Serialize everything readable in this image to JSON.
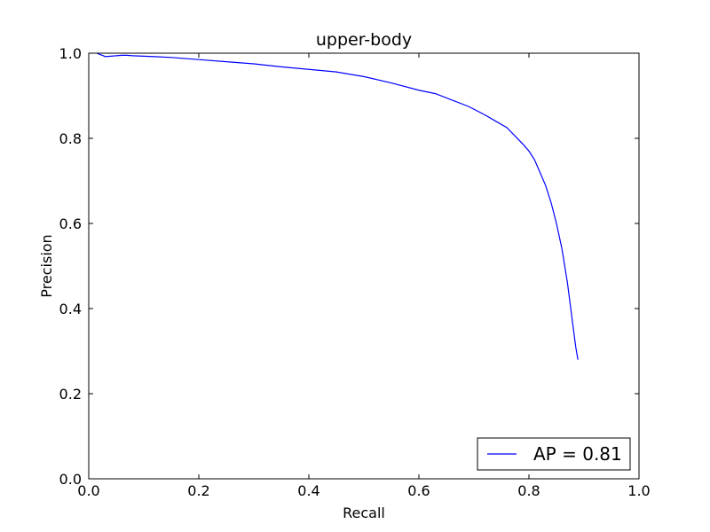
{
  "chart_data": {
    "type": "line",
    "title": "upper-body",
    "xlabel": "Recall",
    "ylabel": "Precision",
    "xlim": [
      0.0,
      1.0
    ],
    "ylim": [
      0.0,
      1.0
    ],
    "x_ticks": [
      "0.0",
      "0.2",
      "0.4",
      "0.6",
      "0.8",
      "1.0"
    ],
    "y_ticks": [
      "0.0",
      "0.2",
      "0.4",
      "0.6",
      "0.8",
      "1.0"
    ],
    "grid": false,
    "legend": {
      "placement": "lower-right"
    },
    "series": [
      {
        "name": "AP = 0.81",
        "color": "#0000ff",
        "x": [
          0.015,
          0.02,
          0.025,
          0.03,
          0.04,
          0.05,
          0.06,
          0.07,
          0.08,
          0.1,
          0.12,
          0.15,
          0.2,
          0.25,
          0.3,
          0.35,
          0.4,
          0.45,
          0.5,
          0.55,
          0.6,
          0.63,
          0.66,
          0.69,
          0.72,
          0.74,
          0.76,
          0.775,
          0.79,
          0.8,
          0.81,
          0.82,
          0.83,
          0.84,
          0.85,
          0.855,
          0.86,
          0.865,
          0.87,
          0.875,
          0.88,
          0.885,
          0.889
        ],
        "y": [
          1.0,
          0.997,
          0.995,
          0.992,
          0.993,
          0.994,
          0.995,
          0.995,
          0.994,
          0.993,
          0.992,
          0.99,
          0.985,
          0.98,
          0.975,
          0.968,
          0.962,
          0.956,
          0.945,
          0.93,
          0.913,
          0.905,
          0.89,
          0.875,
          0.855,
          0.84,
          0.825,
          0.805,
          0.785,
          0.77,
          0.75,
          0.72,
          0.69,
          0.65,
          0.6,
          0.57,
          0.54,
          0.5,
          0.46,
          0.41,
          0.36,
          0.31,
          0.28
        ]
      }
    ]
  }
}
